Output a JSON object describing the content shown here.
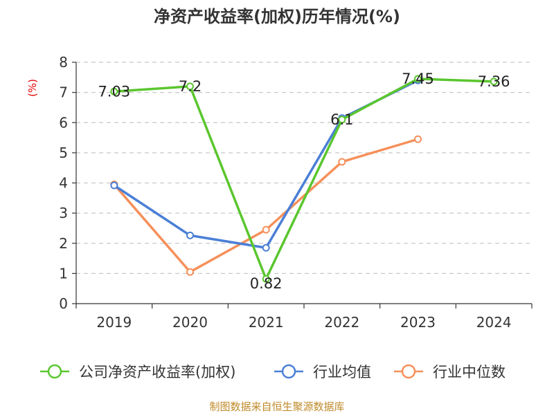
{
  "chart_data": {
    "type": "line",
    "title": "净资产收益率(加权)历年情况(%)",
    "y_unit": "(%)",
    "categories": [
      "2019",
      "2020",
      "2021",
      "2022",
      "2023",
      "2024"
    ],
    "ylim": [
      0,
      8
    ],
    "y_ticks": [
      0,
      1,
      2,
      3,
      4,
      5,
      6,
      7,
      8
    ],
    "grid": "horizontal dashed",
    "legend_position": "bottom",
    "series": [
      {
        "name": "公司净资产收益率(加权)",
        "color": "#5ac62e",
        "values": [
          7.03,
          7.2,
          0.82,
          6.1,
          7.45,
          7.36
        ],
        "labels": [
          "7.03",
          "7.2",
          "0.82",
          "6.1",
          "7.45",
          "7.36"
        ]
      },
      {
        "name": "行业均值",
        "color": "#4a7fd6",
        "values": [
          3.92,
          2.26,
          1.85,
          6.15,
          7.4,
          null
        ]
      },
      {
        "name": "行业中位数",
        "color": "#f5905a",
        "values": [
          3.95,
          1.05,
          2.45,
          4.7,
          5.45,
          null
        ]
      }
    ],
    "source": "制图数据来自恒生聚源数据库"
  }
}
